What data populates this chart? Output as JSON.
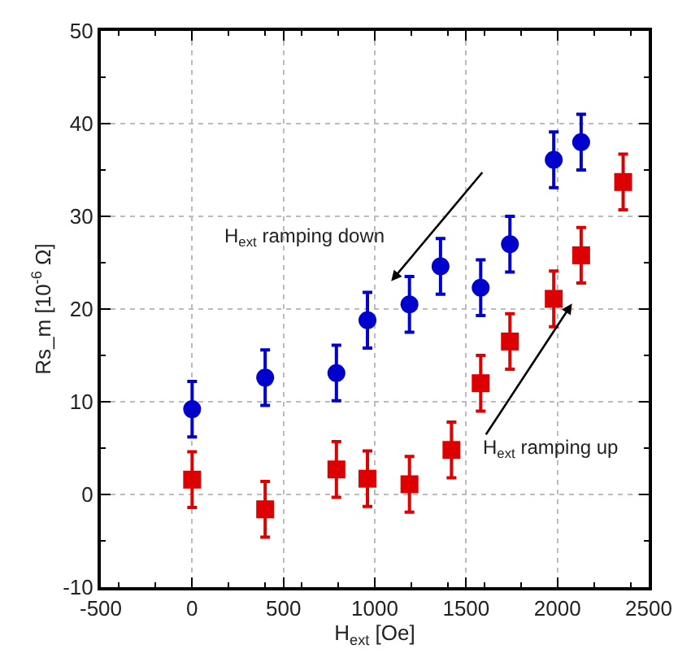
{
  "chart_data": {
    "type": "scatter",
    "xlabel": "H$_{ext}$ [Oe]",
    "ylabel": "Rs_m [10$^{-6}$ Ω]",
    "xlim": [
      -500,
      2500
    ],
    "xticks": [
      -500,
      0,
      500,
      1000,
      1500,
      2000,
      2500
    ],
    "ylim": [
      -10,
      50
    ],
    "yticks": [
      -10,
      0,
      10,
      20,
      30,
      40,
      50
    ],
    "grid": true,
    "legend": false,
    "annotations": [
      "H$_{ext}$ ramping down",
      "H$_{ext}$ ramping up"
    ],
    "series": [
      {
        "color": "#0000cc",
        "marker": "circle",
        "x": [
          0,
          400,
          790,
          960,
          1190,
          1360,
          1580,
          1740,
          1980,
          2130
        ],
        "values": [
          9.2,
          12.6,
          13.1,
          18.8,
          20.5,
          24.6,
          22.3,
          27.0,
          36.1,
          38.0
        ],
        "errors": [
          3,
          3,
          3,
          3,
          3,
          3,
          3,
          3,
          3,
          3
        ]
      },
      {
        "color": "#dd0000",
        "marker": "square",
        "x": [
          0,
          400,
          790,
          960,
          1190,
          1420,
          1580,
          1740,
          1980,
          2130,
          2360
        ],
        "values": [
          1.6,
          -1.6,
          2.7,
          1.7,
          1.1,
          4.8,
          12.0,
          16.5,
          21.1,
          25.8,
          33.7
        ],
        "errors": [
          3,
          3,
          3,
          3,
          3,
          3,
          3,
          3,
          3,
          3,
          3
        ]
      }
    ]
  }
}
